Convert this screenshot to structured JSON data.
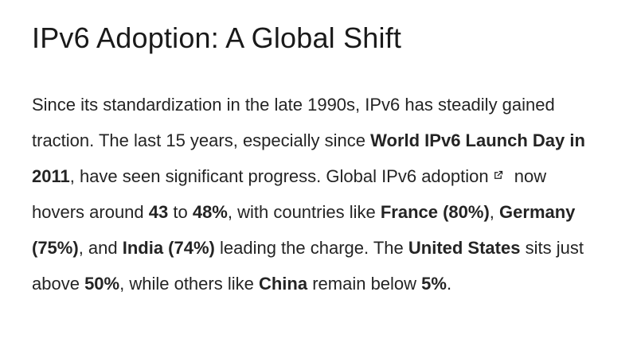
{
  "page": {
    "title": "IPv6 Adoption: A Global Shift"
  },
  "article": {
    "segments": [
      {
        "text": "Since its standardization in the late 1990s, IPv6 has steadily gained traction. The last 15 years, especially since "
      },
      {
        "text": "World IPv6 Launch Day in 2011",
        "bold": true
      },
      {
        "text": ", have seen significant progress. "
      },
      {
        "text": "Global IPv6 adoption",
        "link": true
      },
      {
        "icon": "external-link"
      },
      {
        "text": " now hovers around "
      },
      {
        "text": "43",
        "bold": true
      },
      {
        "text": " to "
      },
      {
        "text": "48%",
        "bold": true
      },
      {
        "text": ", with countries like "
      },
      {
        "text": "France (80%)",
        "bold": true
      },
      {
        "text": ", "
      },
      {
        "text": "Germany (75%)",
        "bold": true
      },
      {
        "text": ", and "
      },
      {
        "text": "India (74%)",
        "bold": true
      },
      {
        "text": " leading the charge. The "
      },
      {
        "text": "United States",
        "bold": true
      },
      {
        "text": " sits just above "
      },
      {
        "text": "50%",
        "bold": true
      },
      {
        "text": ", while others like "
      },
      {
        "text": "China",
        "bold": true
      },
      {
        "text": " remain below "
      },
      {
        "text": "5%",
        "bold": true
      },
      {
        "text": "."
      }
    ]
  },
  "colors": {
    "background": "#ffffff",
    "heading": "#1a1a1a",
    "body_text": "#242424"
  }
}
